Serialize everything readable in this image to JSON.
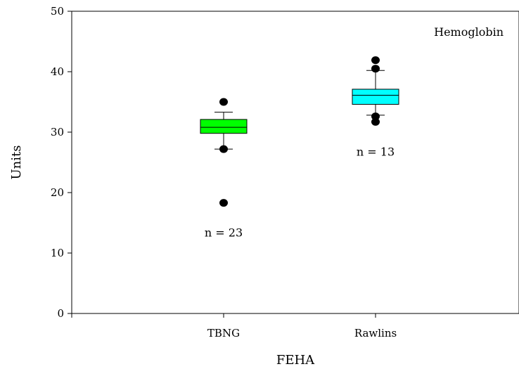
{
  "chart_data": {
    "type": "box",
    "title": "",
    "annotation": "Hemoglobin",
    "xlabel": "FEHA",
    "ylabel": "Units",
    "ylim": [
      0,
      50
    ],
    "yticks": [
      0,
      10,
      20,
      30,
      40,
      50
    ],
    "categories": [
      "TBNG",
      "Rawlins"
    ],
    "boxes": [
      {
        "category": "TBNG",
        "color": "#00ff00",
        "whisker_low": 27.2,
        "q1": 29.8,
        "median": 30.8,
        "q3": 32.1,
        "whisker_high": 33.3,
        "outliers": [
          35.0,
          27.2,
          18.3
        ],
        "n_label": "n = 23"
      },
      {
        "category": "Rawlins",
        "color": "#00ffff",
        "whisker_low": 32.8,
        "q1": 34.6,
        "median": 36.1,
        "q3": 37.1,
        "whisker_high": 40.2,
        "outliers": [
          41.9,
          40.5,
          32.6,
          31.7
        ],
        "n_label": "n = 13"
      }
    ]
  }
}
